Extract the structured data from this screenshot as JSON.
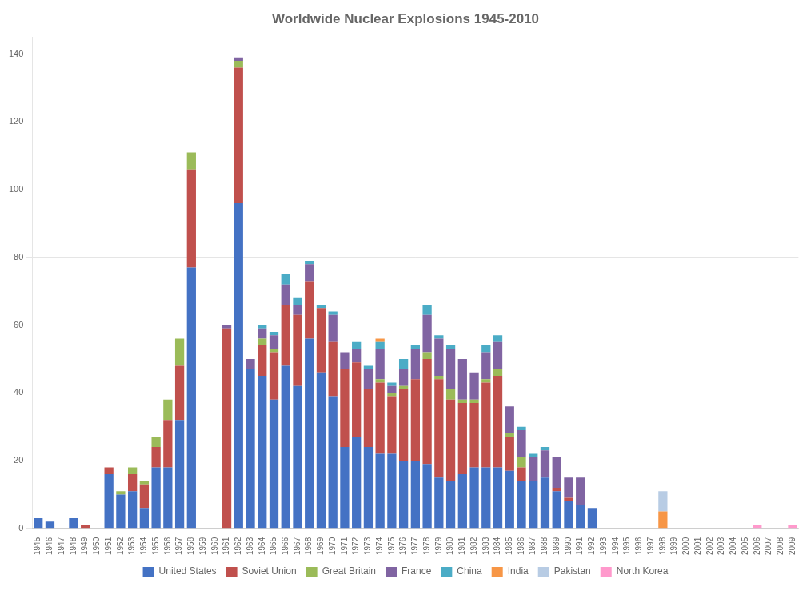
{
  "chart_data": {
    "type": "bar",
    "title": "Worldwide Nuclear Explosions 1945-2010",
    "stacked": true,
    "grid": true,
    "legend": "bottom",
    "categories": [
      "1945",
      "1946",
      "1947",
      "1948",
      "1949",
      "1950",
      "1951",
      "1952",
      "1953",
      "1954",
      "1955",
      "1956",
      "1957",
      "1958",
      "1959",
      "1960",
      "1961",
      "1962",
      "1963",
      "1964",
      "1965",
      "1966",
      "1967",
      "1968",
      "1969",
      "1970",
      "1971",
      "1972",
      "1973",
      "1974",
      "1975",
      "1976",
      "1977",
      "1978",
      "1979",
      "1980",
      "1981",
      "1982",
      "1983",
      "1984",
      "1985",
      "1986",
      "1987",
      "1988",
      "1989",
      "1990",
      "1991",
      "1992",
      "1993",
      "1994",
      "1995",
      "1996",
      "1997",
      "1998",
      "1999",
      "2000",
      "2001",
      "2002",
      "2003",
      "2004",
      "2005",
      "2006",
      "2007",
      "2008",
      "2009"
    ],
    "series": [
      {
        "name": "United States",
        "color": "#4472C4",
        "values": [
          3,
          2,
          0,
          3,
          0,
          0,
          16,
          10,
          11,
          6,
          18,
          18,
          32,
          77,
          0,
          0,
          0,
          96,
          47,
          45,
          38,
          48,
          42,
          56,
          46,
          39,
          24,
          27,
          24,
          22,
          22,
          20,
          20,
          19,
          15,
          14,
          16,
          18,
          18,
          18,
          17,
          14,
          14,
          15,
          11,
          8,
          7,
          6,
          0,
          0,
          0,
          0,
          0,
          0,
          0,
          0,
          0,
          0,
          0,
          0,
          0,
          0,
          0,
          0,
          0
        ]
      },
      {
        "name": "Soviet Union",
        "color": "#C0504D",
        "values": [
          0,
          0,
          0,
          0,
          1,
          0,
          2,
          0,
          5,
          7,
          6,
          14,
          16,
          29,
          0,
          0,
          59,
          40,
          0,
          9,
          14,
          18,
          21,
          17,
          19,
          16,
          23,
          22,
          17,
          21,
          17,
          21,
          24,
          31,
          29,
          24,
          21,
          19,
          25,
          27,
          10,
          4,
          0,
          0,
          1,
          1,
          0,
          0,
          0,
          0,
          0,
          0,
          0,
          0,
          0,
          0,
          0,
          0,
          0,
          0,
          0,
          0,
          0,
          0,
          0
        ]
      },
      {
        "name": "Great Britain",
        "color": "#9BBB59",
        "values": [
          0,
          0,
          0,
          0,
          0,
          0,
          0,
          1,
          2,
          1,
          3,
          6,
          8,
          5,
          0,
          0,
          0,
          2,
          0,
          2,
          1,
          0,
          0,
          0,
          0,
          0,
          0,
          0,
          0,
          1,
          1,
          1,
          0,
          2,
          1,
          3,
          1,
          1,
          1,
          2,
          1,
          3,
          0,
          0,
          0,
          0,
          0,
          0,
          0,
          0,
          0,
          0,
          0,
          0,
          0,
          0,
          0,
          0,
          0,
          0,
          0,
          0,
          0,
          0,
          0
        ]
      },
      {
        "name": "France",
        "color": "#8064A2",
        "values": [
          0,
          0,
          0,
          0,
          0,
          0,
          0,
          0,
          0,
          0,
          0,
          0,
          0,
          0,
          0,
          0,
          1,
          1,
          3,
          3,
          4,
          6,
          3,
          5,
          0,
          8,
          5,
          4,
          6,
          9,
          2,
          5,
          9,
          11,
          11,
          12,
          12,
          8,
          8,
          8,
          8,
          8,
          7,
          8,
          9,
          6,
          8,
          0,
          0,
          0,
          0,
          0,
          0,
          0,
          0,
          0,
          0,
          0,
          0,
          0,
          0,
          0,
          0,
          0,
          0
        ]
      },
      {
        "name": "China",
        "color": "#4BACC6",
        "values": [
          0,
          0,
          0,
          0,
          0,
          0,
          0,
          0,
          0,
          0,
          0,
          0,
          0,
          0,
          0,
          0,
          0,
          0,
          0,
          1,
          1,
          3,
          2,
          1,
          1,
          1,
          0,
          2,
          1,
          2,
          1,
          3,
          1,
          3,
          1,
          1,
          0,
          0,
          2,
          2,
          0,
          1,
          1,
          1,
          0,
          0,
          0,
          0,
          0,
          0,
          0,
          0,
          0,
          0,
          0,
          0,
          0,
          0,
          0,
          0,
          0,
          0,
          0,
          0,
          0
        ]
      },
      {
        "name": "India",
        "color": "#F79646",
        "values": [
          0,
          0,
          0,
          0,
          0,
          0,
          0,
          0,
          0,
          0,
          0,
          0,
          0,
          0,
          0,
          0,
          0,
          0,
          0,
          0,
          0,
          0,
          0,
          0,
          0,
          0,
          0,
          0,
          0,
          1,
          0,
          0,
          0,
          0,
          0,
          0,
          0,
          0,
          0,
          0,
          0,
          0,
          0,
          0,
          0,
          0,
          0,
          0,
          0,
          0,
          0,
          0,
          0,
          5,
          0,
          0,
          0,
          0,
          0,
          0,
          0,
          0,
          0,
          0,
          0
        ]
      },
      {
        "name": "Pakistan",
        "color": "#B8CCE4",
        "values": [
          0,
          0,
          0,
          0,
          0,
          0,
          0,
          0,
          0,
          0,
          0,
          0,
          0,
          0,
          0,
          0,
          0,
          0,
          0,
          0,
          0,
          0,
          0,
          0,
          0,
          0,
          0,
          0,
          0,
          0,
          0,
          0,
          0,
          0,
          0,
          0,
          0,
          0,
          0,
          0,
          0,
          0,
          0,
          0,
          0,
          0,
          0,
          0,
          0,
          0,
          0,
          0,
          0,
          6,
          0,
          0,
          0,
          0,
          0,
          0,
          0,
          0,
          0,
          0,
          0
        ]
      },
      {
        "name": "North Korea",
        "color": "#FF99CC",
        "values": [
          0,
          0,
          0,
          0,
          0,
          0,
          0,
          0,
          0,
          0,
          0,
          0,
          0,
          0,
          0,
          0,
          0,
          0,
          0,
          0,
          0,
          0,
          0,
          0,
          0,
          0,
          0,
          0,
          0,
          0,
          0,
          0,
          0,
          0,
          0,
          0,
          0,
          0,
          0,
          0,
          0,
          0,
          0,
          0,
          0,
          0,
          0,
          0,
          0,
          0,
          0,
          0,
          0,
          0,
          0,
          0,
          0,
          0,
          0,
          0,
          0,
          1,
          0,
          0,
          1
        ]
      }
    ],
    "ylim": [
      0,
      145
    ],
    "yticks": [
      0,
      20,
      40,
      60,
      80,
      100,
      120,
      140
    ]
  }
}
